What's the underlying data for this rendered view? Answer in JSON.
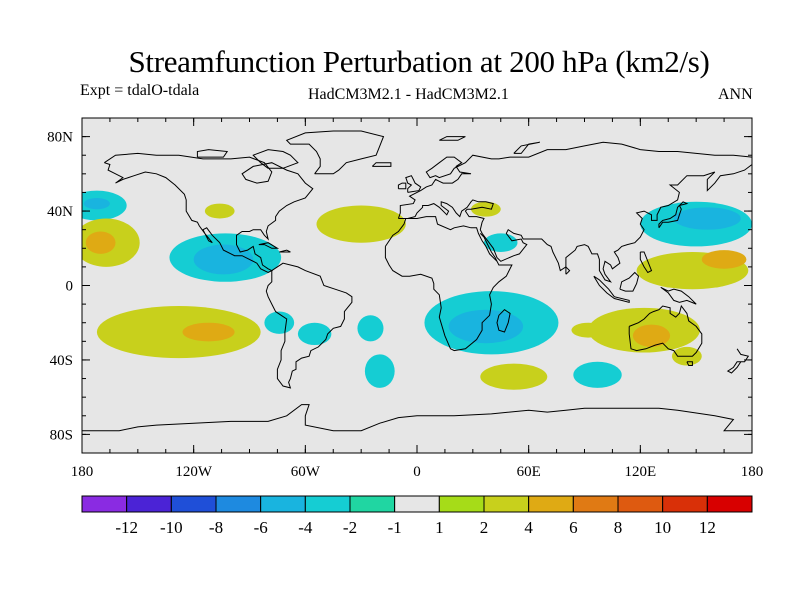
{
  "chart_data": {
    "type": "heatmap",
    "title": "Streamfunction Perturbation at 200 hPa (km2/s)",
    "subtitle_left": "Expt = tdalO-tdala",
    "subtitle_center": "HadCM3M2.1 - HadCM3M2.1",
    "subtitle_right": "ANN",
    "xlim": [
      -180,
      180
    ],
    "ylim": [
      -90,
      90
    ],
    "x_ticks": [
      {
        "value": -180,
        "label": "180"
      },
      {
        "value": -120,
        "label": "120W"
      },
      {
        "value": -60,
        "label": "60W"
      },
      {
        "value": 0,
        "label": "0"
      },
      {
        "value": 60,
        "label": "60E"
      },
      {
        "value": 120,
        "label": "120E"
      },
      {
        "value": 180,
        "label": "180"
      }
    ],
    "y_ticks": [
      {
        "value": 80,
        "label": "80N"
      },
      {
        "value": 40,
        "label": "40N"
      },
      {
        "value": 0,
        "label": "0"
      },
      {
        "value": -40,
        "label": "40S"
      },
      {
        "value": -80,
        "label": "80S"
      }
    ],
    "colorbar": {
      "labels": [
        "-12",
        "-10",
        "-8",
        "-6",
        "-4",
        "-2",
        "-1",
        "1",
        "2",
        "4",
        "6",
        "8",
        "10",
        "12"
      ],
      "colors": [
        "#8a2be2",
        "#4b23d6",
        "#1f4fd8",
        "#1e8ae0",
        "#19b4df",
        "#15cdd3",
        "#20d6a2",
        "#e6e6e6",
        "#a6dc18",
        "#c8d01c",
        "#dfaa14",
        "#e07a14",
        "#de5a10",
        "#d93008",
        "#d80000"
      ]
    },
    "regions": [
      {
        "name": "n-pacific-east",
        "lon": -172,
        "lat": 43,
        "rlon": 16,
        "rlat": 8,
        "level": "-2"
      },
      {
        "name": "n-pacific-east-core",
        "lon": -172,
        "lat": 44,
        "rlon": 7,
        "rlat": 3,
        "level": "-4"
      },
      {
        "name": "subtrop-pacific-east",
        "lon": -167,
        "lat": 23,
        "rlon": 18,
        "rlat": 13,
        "level": "2"
      },
      {
        "name": "subtrop-pacific-east-core",
        "lon": -170,
        "lat": 23,
        "rlon": 8,
        "rlat": 6,
        "level": "4"
      },
      {
        "name": "central-america",
        "lon": -103,
        "lat": 15,
        "rlon": 30,
        "rlat": 13,
        "level": "-2"
      },
      {
        "name": "central-america-core",
        "lon": -104,
        "lat": 14,
        "rlon": 16,
        "rlat": 8,
        "level": "-4"
      },
      {
        "name": "n-america-sw",
        "lon": -106,
        "lat": 40,
        "rlon": 8,
        "rlat": 4,
        "level": "2"
      },
      {
        "name": "n-atlantic",
        "lon": -30,
        "lat": 33,
        "rlon": 24,
        "rlat": 10,
        "level": "2"
      },
      {
        "name": "s-pacific",
        "lon": -128,
        "lat": -25,
        "rlon": 44,
        "rlat": 14,
        "level": "2"
      },
      {
        "name": "s-pacific-core",
        "lon": -112,
        "lat": -25,
        "rlon": 14,
        "rlat": 5,
        "level": "4"
      },
      {
        "name": "s-america-w",
        "lon": -74,
        "lat": -20,
        "rlon": 8,
        "rlat": 6,
        "level": "-2"
      },
      {
        "name": "s-atlantic-w",
        "lon": -55,
        "lat": -26,
        "rlon": 9,
        "rlat": 6,
        "level": "-2"
      },
      {
        "name": "s-atlantic-s",
        "lon": -25,
        "lat": -23,
        "rlon": 7,
        "rlat": 7,
        "level": "-2"
      },
      {
        "name": "s-ocean-mid",
        "lon": -20,
        "lat": -46,
        "rlon": 8,
        "rlat": 9,
        "level": "-2"
      },
      {
        "name": "southern-africa",
        "lon": 40,
        "lat": -20,
        "rlon": 36,
        "rlat": 17,
        "level": "-2"
      },
      {
        "name": "southern-africa-core",
        "lon": 37,
        "lat": -22,
        "rlon": 20,
        "rlat": 9,
        "level": "-4"
      },
      {
        "name": "n-africa",
        "lon": 45,
        "lat": 23,
        "rlon": 9,
        "rlat": 5,
        "level": "-2"
      },
      {
        "name": "mediterranean",
        "lon": 37,
        "lat": 41,
        "rlon": 8,
        "rlat": 4,
        "level": "2"
      },
      {
        "name": "s-indian",
        "lon": 52,
        "lat": -49,
        "rlon": 18,
        "rlat": 7,
        "level": "2"
      },
      {
        "name": "indian-ocean",
        "lon": 92,
        "lat": -24,
        "rlon": 9,
        "rlat": 4,
        "level": "2"
      },
      {
        "name": "s-indian-east",
        "lon": 97,
        "lat": -48,
        "rlon": 13,
        "rlat": 7,
        "level": "-2"
      },
      {
        "name": "nw-pacific",
        "lon": 150,
        "lat": 33,
        "rlon": 30,
        "rlat": 12,
        "level": "-2"
      },
      {
        "name": "nw-pacific-core",
        "lon": 156,
        "lat": 36,
        "rlon": 18,
        "rlat": 6,
        "level": "-4"
      },
      {
        "name": "w-pacific-tropics",
        "lon": 148,
        "lat": 8,
        "rlon": 30,
        "rlat": 10,
        "level": "2"
      },
      {
        "name": "w-pacific-tropics-core",
        "lon": 165,
        "lat": 14,
        "rlon": 12,
        "rlat": 5,
        "level": "4"
      },
      {
        "name": "australia",
        "lon": 122,
        "lat": -24,
        "rlon": 30,
        "rlat": 12,
        "level": "2"
      },
      {
        "name": "australia-core",
        "lon": 126,
        "lat": -27,
        "rlon": 10,
        "rlat": 6,
        "level": "4"
      },
      {
        "name": "s-pacific-east",
        "lon": 145,
        "lat": -38,
        "rlon": 8,
        "rlat": 5,
        "level": "2"
      }
    ]
  }
}
